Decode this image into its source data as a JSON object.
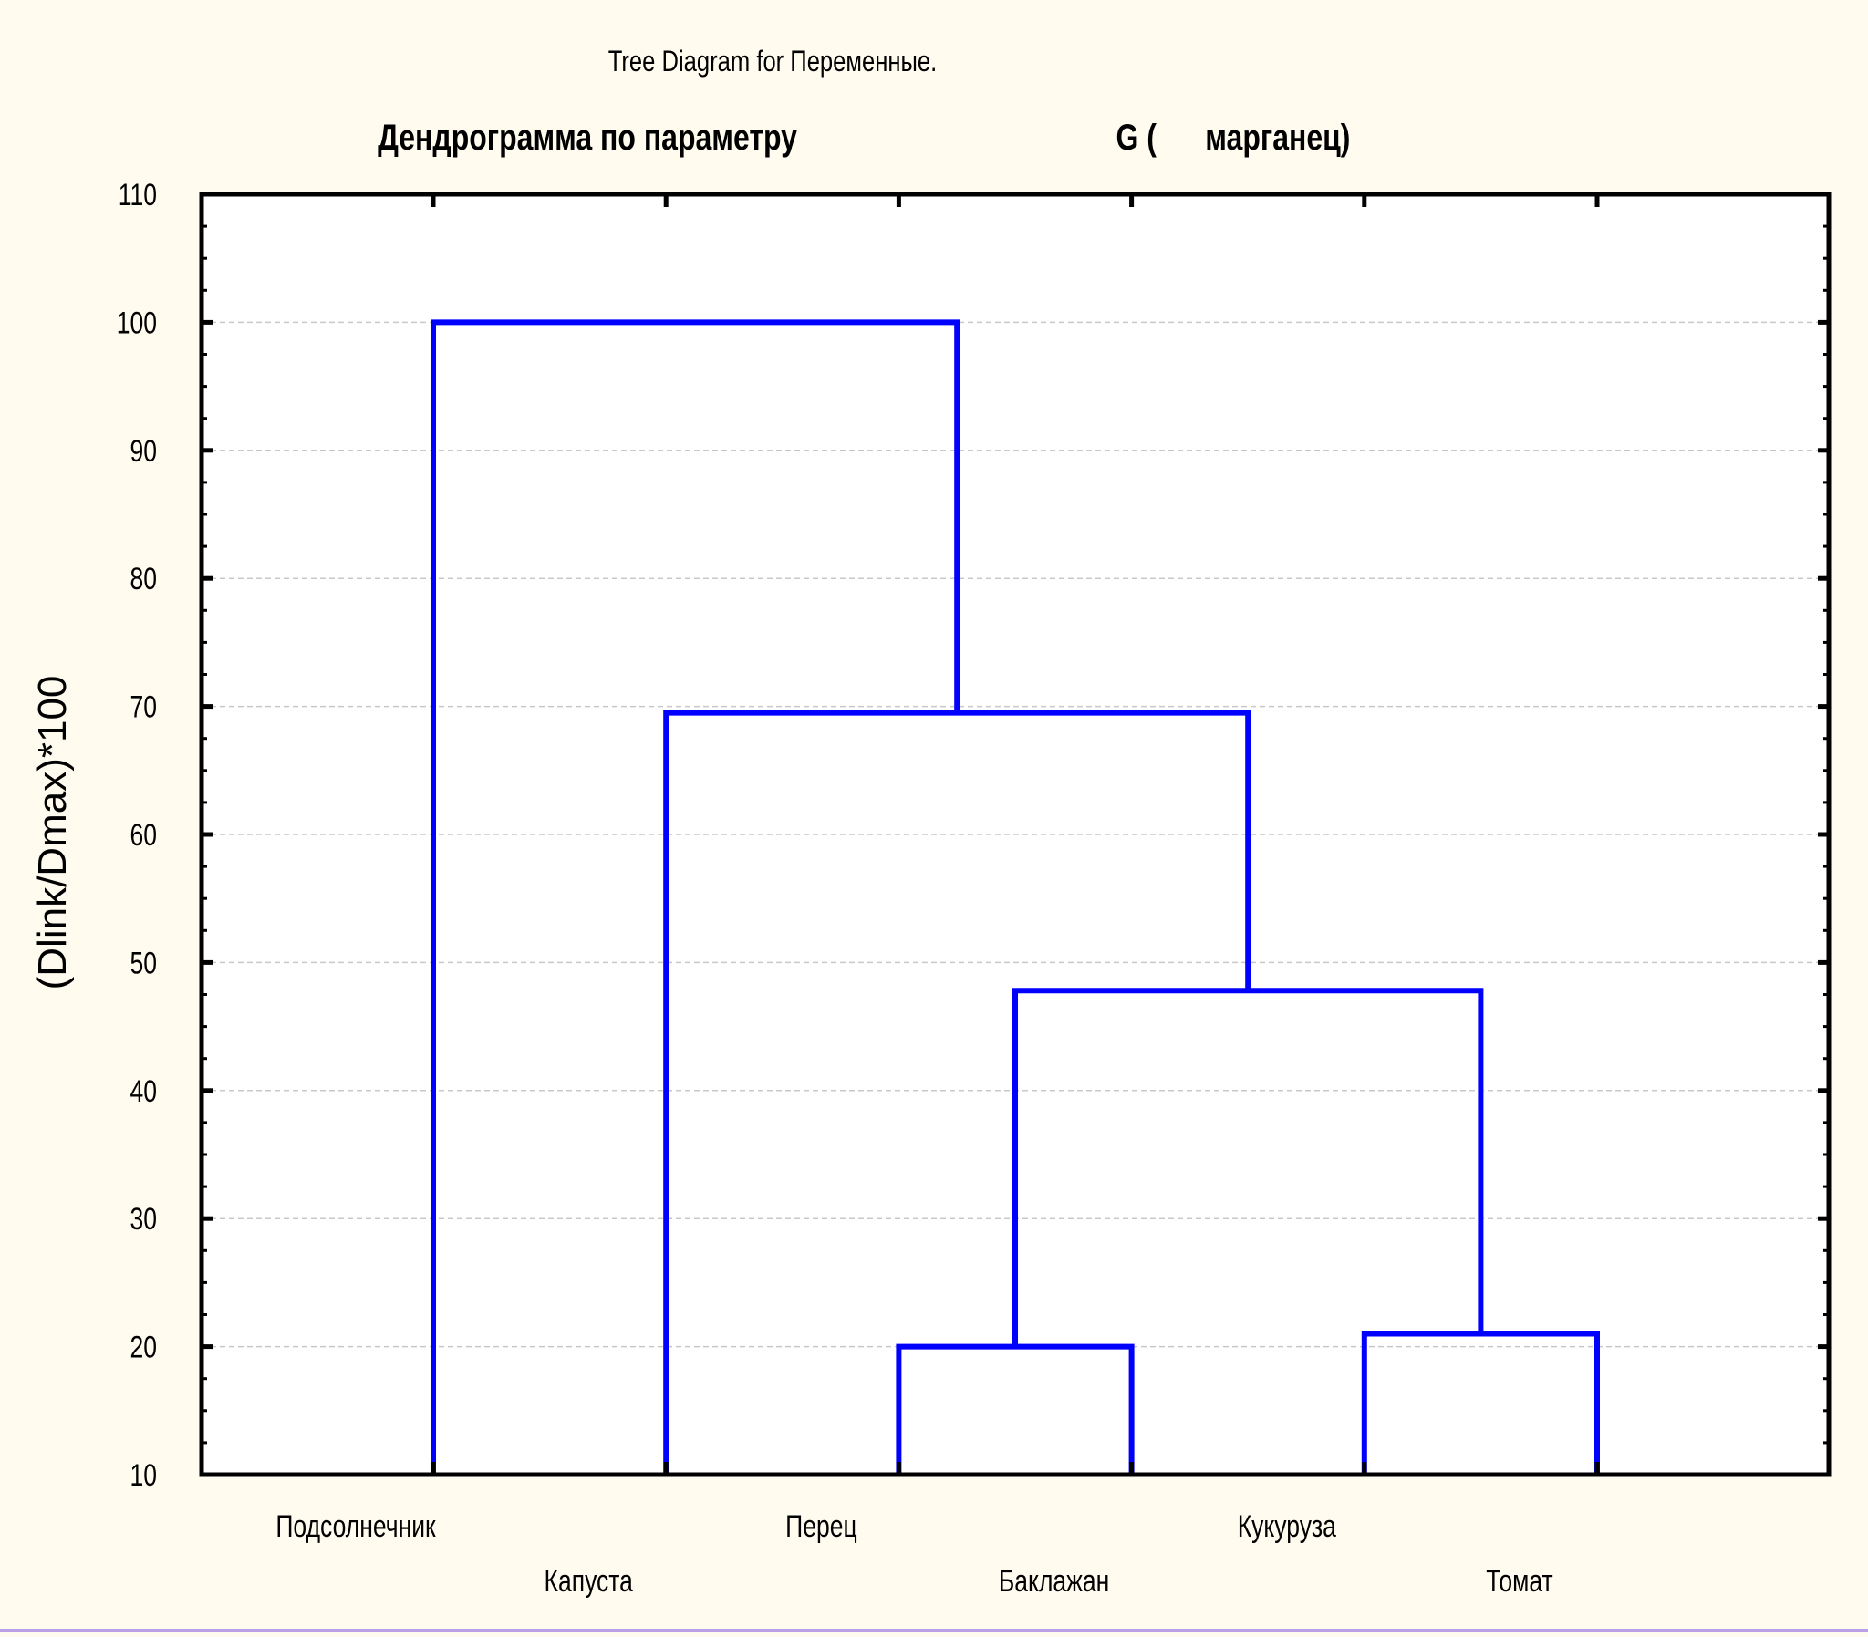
{
  "chart_data": {
    "type": "dendrogram",
    "header": "Tree Diagram for  Переменные.",
    "title_left": "Дендрограмма по параметру",
    "title_right": "G (      марганец)",
    "ylabel": "(Dlink/Dmax)*100",
    "xlabel": "",
    "ylim": [
      10,
      110
    ],
    "yticks": [
      10,
      20,
      30,
      40,
      50,
      60,
      70,
      80,
      90,
      100,
      110
    ],
    "grid": true,
    "leaves": [
      "Подсолнечник",
      "Капуста",
      "Перец",
      "Баклажан",
      "Кукуруза",
      "Томат"
    ],
    "merges": [
      {
        "left": "Перец",
        "right": "Баклажан",
        "height": 20
      },
      {
        "left": "Кукуруза",
        "right": "Томат",
        "height": 21
      },
      {
        "left": "Перец + Баклажан",
        "right": "Кукуруза + Томат",
        "height": 47.8
      },
      {
        "left": "Капуста",
        "right": "Перец + Баклажан + Кукуруза + Томат",
        "height": 69.5
      },
      {
        "left": "Подсолнечник",
        "right": "Капуста + Перец + Баклажан + Кукуруза + Томат",
        "height": 100
      }
    ],
    "line_color": "#0000ff"
  }
}
